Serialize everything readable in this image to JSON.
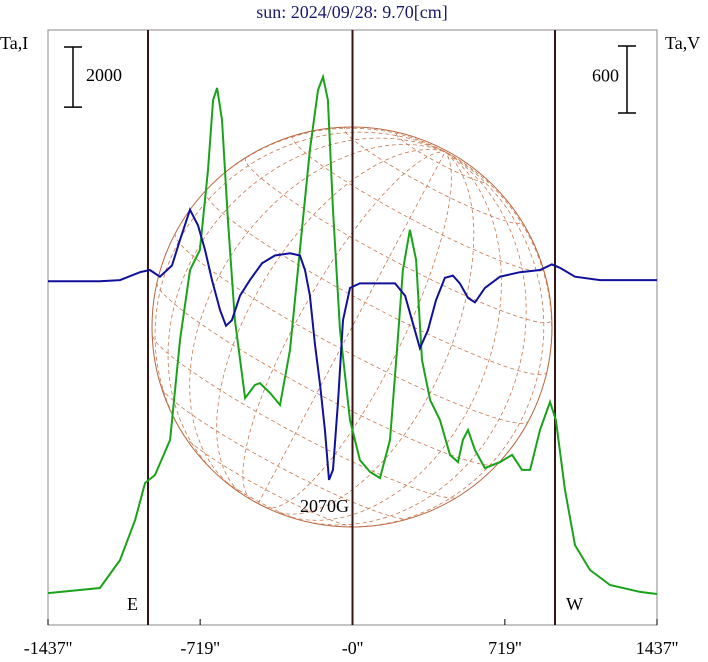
{
  "chart_data": {
    "type": "line",
    "title": "sun: 2024/09/28: 9.70[cm]",
    "ylabel": "Ta,I",
    "y2label": "Ta,V",
    "annotation": "2070G",
    "east_label": "E",
    "west_label": "W",
    "i_scale": 2000,
    "v_scale": 600,
    "xlim": [
      -1437,
      1437
    ],
    "xticks": [
      {
        "value": -1437,
        "label": "-1437''"
      },
      {
        "value": -719,
        "label": "-719''"
      },
      {
        "value": 0,
        "label": "-0''"
      },
      {
        "value": 719,
        "label": "719''"
      },
      {
        "value": 1437,
        "label": "1437''"
      }
    ],
    "ylim": [
      0,
      19800
    ],
    "y2lim": [
      -3080,
      2250
    ],
    "series": [
      {
        "name": "I",
        "color": "#1aa31a",
        "x": [
          -1437,
          -1192,
          -1097,
          -1026,
          -979,
          -932,
          -861,
          -814,
          -767,
          -720,
          -682,
          -658,
          -639,
          -616,
          -588,
          -555,
          -507,
          -460,
          -437,
          -389,
          -342,
          -295,
          -248,
          -201,
          -163,
          -139,
          -116,
          -92,
          -59,
          -12,
          35,
          83,
          130,
          177,
          210,
          238,
          271,
          300,
          328,
          366,
          413,
          460,
          498,
          521,
          545,
          578,
          625,
          696,
          753,
          800,
          838,
          885,
          932,
          960,
          1003,
          1050,
          1121,
          1215,
          1357,
          1437
        ],
        "values": [
          1060,
          1230,
          2160,
          3490,
          4730,
          4990,
          6160,
          9480,
          11810,
          12480,
          15140,
          17470,
          17870,
          16810,
          13480,
          10150,
          7550,
          7990,
          8050,
          7720,
          7320,
          9150,
          12480,
          15810,
          17800,
          18240,
          17470,
          13810,
          9820,
          6820,
          5490,
          5090,
          4890,
          6160,
          9150,
          11810,
          13150,
          12150,
          8820,
          7490,
          6820,
          5660,
          5420,
          6160,
          6490,
          5820,
          5220,
          5420,
          5660,
          5160,
          5160,
          6490,
          7420,
          6820,
          4490,
          2660,
          1830,
          1330,
          1100,
          1030
        ]
      },
      {
        "name": "V",
        "color": "#10109a",
        "axis": "y2",
        "x": [
          -1437,
          -1192,
          -1097,
          -1003,
          -956,
          -909,
          -852,
          -814,
          -767,
          -729,
          -696,
          -663,
          -625,
          -597,
          -569,
          -531,
          -484,
          -427,
          -366,
          -295,
          -248,
          -224,
          -201,
          -177,
          -153,
          -130,
          -111,
          -92,
          -68,
          -45,
          -12,
          35,
          130,
          201,
          248,
          281,
          318,
          356,
          394,
          436,
          474,
          507,
          545,
          578,
          625,
          696,
          790,
          885,
          941,
          979,
          1050,
          1168,
          1437
        ],
        "values": [
          0,
          0,
          10,
          80,
          100,
          40,
          140,
          370,
          640,
          500,
          280,
          10,
          -260,
          -400,
          -350,
          -130,
          10,
          160,
          230,
          250,
          230,
          100,
          -130,
          -570,
          -930,
          -1340,
          -1780,
          -1690,
          -1070,
          -350,
          -60,
          -20,
          -20,
          -20,
          -130,
          -350,
          -600,
          -440,
          -170,
          30,
          50,
          -20,
          -150,
          -190,
          -60,
          40,
          80,
          100,
          150,
          120,
          40,
          10,
          10
        ]
      }
    ]
  }
}
